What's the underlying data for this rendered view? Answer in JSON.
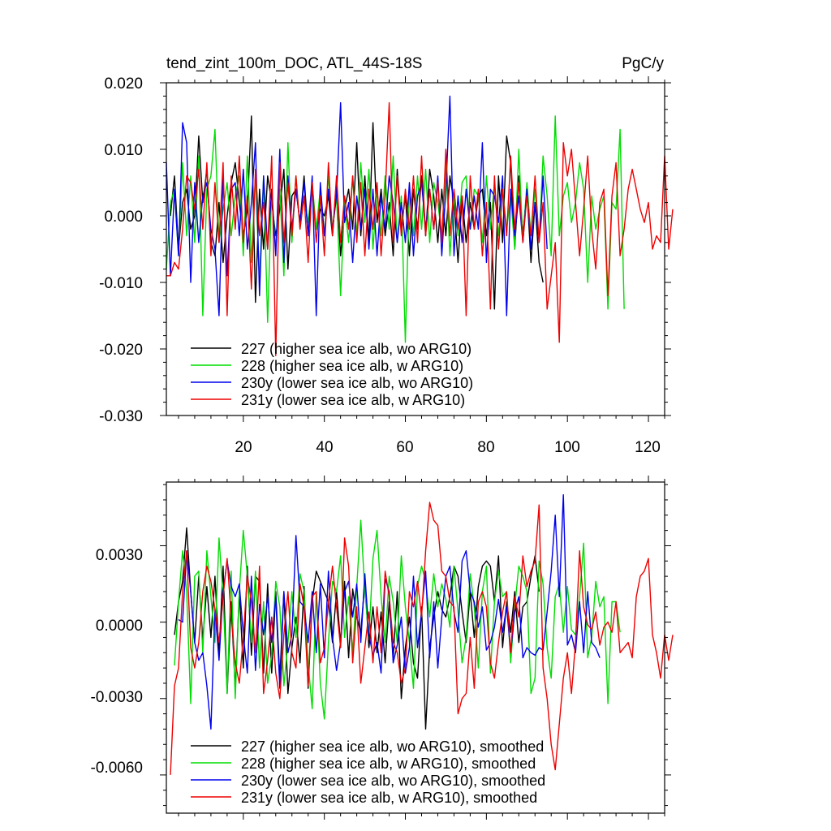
{
  "chart_data": [
    {
      "type": "line",
      "title": "tend_zint_100m_DOC, ATL_44S-18S",
      "units": "PgC/y",
      "ylim": [
        -0.03,
        0.02
      ],
      "xlim": [
        1,
        124
      ],
      "y_ticks": [
        "0.020",
        "0.010",
        "0.000",
        "-0.010",
        "-0.020",
        "-0.030"
      ],
      "x_ticks": [
        "20",
        "40",
        "60",
        "80",
        "100",
        "120"
      ],
      "legend_position": "bottom-left",
      "series": [
        {
          "name": "227 (higher sea ice alb, wo ARG10)",
          "color": "#000000",
          "start": 2,
          "values": [
            0.0,
            0.006,
            -0.005,
            0.002,
            0.004,
            -0.002,
            0.0,
            0.012,
            0.002,
            0.007,
            -0.004,
            -0.006,
            0.002,
            -0.007,
            0.0,
            0.005,
            0.008,
            0.002,
            -0.003,
            0.001,
            0.015,
            -0.013,
            0.004,
            -0.005,
            0.006,
            0.002,
            -0.003,
            0.001,
            0.007,
            -0.008,
            0.003,
            0.004,
            -0.001,
            0.006,
            -0.003,
            0.004,
            -0.002,
            0.001,
            0.0,
            0.003,
            -0.003,
            0.005,
            -0.006,
            0.001,
            0.004,
            -0.002,
            0.011,
            -0.003,
            0.006,
            -0.004,
            0.014,
            -0.001,
            0.004,
            -0.003,
            0.002,
            -0.006,
            0.007,
            -0.002,
            0.003,
            -0.006,
            0.004,
            -0.002,
            0.006,
            -0.003,
            0.007,
            0.003,
            -0.004,
            0.004,
            -0.003,
            0.006,
            0.002,
            -0.007,
            0.003,
            -0.004,
            0.002,
            -0.002,
            0.003,
            0.004,
            -0.003,
            0.002,
            -0.014,
            0.006,
            -0.004,
            0.012,
            0.008,
            -0.005,
            0.006,
            -0.003,
            0.004,
            -0.007,
            0.002,
            -0.007,
            -0.01
          ]
        },
        {
          "name": "228 (higher sea ice alb, w ARG10)",
          "color": "#00dd00",
          "start": 1,
          "values": [
            -0.008,
            0.002,
            0.004,
            -0.006,
            0.008,
            -0.003,
            0.006,
            -0.004,
            0.009,
            -0.015,
            0.004,
            0.006,
            0.013,
            -0.004,
            0.001,
            0.005,
            -0.003,
            0.003,
            0.006,
            -0.006,
            0.009,
            -0.007,
            0.006,
            -0.01,
            0.006,
            -0.016,
            0.004,
            -0.005,
            0.004,
            -0.009,
            0.011,
            -0.004,
            0.006,
            -0.002,
            0.003,
            -0.001,
            0.005,
            -0.002,
            0.004,
            -0.003,
            0.006,
            -0.002,
            0.003,
            -0.012,
            0.002,
            -0.004,
            0.006,
            -0.003,
            0.008,
            -0.001,
            0.007,
            -0.005,
            0.004,
            -0.003,
            0.006,
            -0.002,
            0.009,
            -0.004,
            0.003,
            -0.019,
            0.004,
            -0.003,
            0.006,
            -0.002,
            0.007,
            -0.004,
            0.005,
            0.002,
            -0.003,
            0.008,
            -0.006,
            0.003,
            -0.003,
            0.005,
            0.006,
            -0.002,
            0.004,
            0.003,
            -0.004,
            0.006,
            -0.002,
            0.005,
            -0.003,
            0.004,
            -0.002,
            0.003,
            -0.005,
            0.01,
            -0.004,
            0.005,
            -0.003,
            0.004,
            -0.004,
            0.009,
            0.003,
            -0.006,
            0.015,
            -0.003,
            0.003,
            0.005,
            -0.001,
            0.002,
            0.008,
            0.004,
            -0.01,
            0.003,
            -0.002,
            0.001,
            0.003,
            -0.014,
            0.002,
            0.001,
            0.013,
            -0.014
          ]
        },
        {
          "name": "230y (lower sea ice alb, wo ARG10)",
          "color": "#0000ee",
          "start": 1,
          "values": [
            0.008,
            -0.009,
            0.004,
            -0.006,
            0.014,
            0.011,
            -0.01,
            0.005,
            -0.004,
            0.003,
            0.005,
            -0.002,
            -0.005,
            -0.015,
            0.006,
            -0.009,
            0.004,
            0.005,
            -0.003,
            0.007,
            -0.005,
            0.002,
            0.011,
            -0.012,
            0.006,
            -0.005,
            0.004,
            -0.006,
            0.01,
            -0.007,
            0.006,
            -0.002,
            0.004,
            -0.001,
            0.005,
            -0.003,
            0.006,
            -0.015,
            0.005,
            -0.003,
            0.004,
            -0.002,
            0.003,
            0.017,
            -0.001,
            0.002,
            -0.007,
            0.003,
            -0.002,
            0.004,
            -0.005,
            0.004,
            -0.006,
            0.003,
            -0.002,
            0.006,
            0.002,
            -0.004,
            0.002,
            -0.004,
            0.005,
            -0.006,
            0.003,
            0.005,
            -0.002,
            0.004,
            -0.002,
            0.006,
            -0.006,
            0.004,
            0.018,
            -0.006,
            0.003,
            -0.004,
            0.004,
            -0.002,
            0.003,
            -0.002,
            0.011,
            -0.007,
            0.004,
            0.003,
            -0.001,
            0.006,
            -0.015,
            0.004,
            -0.003,
            0.003,
            -0.004,
            0.004,
            -0.005,
            0.002,
            -0.004,
            0.006,
            -0.005
          ]
        },
        {
          "name": "231y (lower sea ice alb, w ARG10)",
          "color": "#ee0000",
          "start": 1,
          "values": [
            -0.009,
            -0.009,
            -0.007,
            -0.008,
            -0.002,
            0.006,
            0.005,
            0.001,
            0.007,
            -0.002,
            0.008,
            -0.006,
            0.005,
            -0.004,
            0.008,
            -0.015,
            0.006,
            -0.002,
            0.009,
            -0.004,
            0.003,
            -0.011,
            0.007,
            -0.003,
            0.002,
            -0.005,
            0.009,
            -0.021,
            0.008,
            -0.004,
            0.005,
            -0.003,
            0.006,
            -0.002,
            0.003,
            -0.007,
            0.005,
            -0.004,
            0.003,
            -0.006,
            0.008,
            -0.003,
            0.006,
            -0.004,
            0.003,
            -0.002,
            0.006,
            -0.004,
            0.005,
            -0.006,
            0.004,
            -0.002,
            0.005,
            -0.006,
            0.003,
            0.017,
            -0.004,
            0.006,
            -0.003,
            0.004,
            -0.002,
            0.006,
            -0.004,
            0.009,
            -0.003,
            0.004,
            -0.002,
            0.005,
            -0.004,
            0.01,
            -0.003,
            0.004,
            -0.002,
            0.003,
            -0.015,
            0.006,
            -0.002,
            0.004,
            -0.006,
            0.002,
            -0.014,
            0.006,
            -0.005,
            0.004,
            -0.003,
            0.009,
            -0.002,
            0.005,
            -0.004,
            0.003,
            -0.003,
            0.006,
            -0.004,
            0.002,
            -0.014,
            -0.009,
            -0.004,
            -0.019,
            0.011,
            0.006,
            0.01,
            0.002,
            -0.006,
            0.001,
            0.009,
            -0.002,
            -0.008,
            0.002,
            0.004,
            -0.012,
            0.003,
            0.008,
            -0.006,
            -0.002,
            0.004,
            0.007,
            0.004,
            0.001,
            -0.001,
            0.002,
            -0.005,
            -0.003,
            -0.004,
            0.009,
            -0.005,
            0.001
          ]
        }
      ]
    },
    {
      "type": "line",
      "ylim": [
        -0.0075,
        0.0055
      ],
      "xlim": [
        1,
        124
      ],
      "y_ticks": [
        "0.0030",
        "0.0000",
        "-0.0030",
        "-0.0060"
      ],
      "legend_position": "bottom-left",
      "series": [
        {
          "name": "227 (higher sea ice alb, wo ARG10), smoothed",
          "color": "#000000",
          "start": 3,
          "values": [
            -0.0005,
            0.0008,
            0.0016,
            0.0037,
            0.0012,
            -0.0008,
            0.0018,
            -0.0007,
            0.0014,
            -0.0006,
            0.0018,
            -0.0013,
            0.0022,
            -0.0028,
            0.0008,
            -0.0027,
            0.0012,
            -0.0018,
            0.0022,
            -0.0013,
            0.0018,
            0.0016,
            -0.002,
            0.0015,
            -0.002,
            0.0012,
            -0.0022,
            0.0012,
            -0.0028,
            -0.001,
            0.0002,
            -0.0016,
            0.0014,
            -0.0026,
            0.0008,
            0.002,
            0.0016,
            0.0012,
            0.0008,
            -0.0008,
            0.0012,
            -0.0009,
            0.0016,
            -0.0014,
            0.0013,
            0.0002,
            -0.0004,
            0.0016,
            -0.001,
            0.0006,
            -0.0012,
            0.0004,
            -0.0016,
            0.0008,
            -0.0014,
            0.0012,
            -0.003,
            -0.001,
            0.0002,
            -0.0016,
            -0.0022,
            0.0006,
            -0.0042,
            -0.001,
            0.0002,
            0.0012,
            0.0005,
            0.0002,
            0.001,
            0.0022,
            0.0018,
            0.0004,
            -0.0008,
            0.0012,
            -0.0006,
            0.0014,
            0.0022,
            0.0024,
            0.0022,
            0.0008,
            0.0026,
            -0.001,
            0.0008,
            -0.0004,
            0.0012,
            -0.0008,
            0.0006,
            0.0008,
            0.0018,
            0.0026,
            0.0012
          ]
        },
        {
          "name": "228 (higher sea ice alb, w ARG10), smoothed",
          "color": "#00dd00",
          "start": 3,
          "values": [
            -0.0017,
            0.0008,
            0.0028,
            0.0012,
            -0.0032,
            0.0018,
            0.002,
            -0.0012,
            0.0028,
            0.001,
            -0.0008,
            0.0033,
            0.001,
            -0.0028,
            0.002,
            -0.003,
            0.0012,
            0.0036,
            0.0018,
            -0.0008,
            0.002,
            -0.0018,
            0.0008,
            -0.0024,
            -0.0013,
            0.0016,
            0.0006,
            -0.0025,
            -0.0008,
            0.0012,
            -0.0006,
            0.0019,
            0.0012,
            -0.0016,
            -0.0034,
            0.0012,
            -0.0024,
            -0.0038,
            -0.0008,
            0.0016,
            0.0012,
            0.0026,
            -0.0006,
            0.001,
            -0.0012,
            0.0014,
            0.004,
            0.0012,
            -0.0006,
            0.0025,
            0.0036,
            0.001,
            -0.0008,
            0.0018,
            0.0008,
            -0.0008,
            0.0026,
            0.0006,
            -0.0008,
            -0.0026,
            0.0014,
            0.0022,
            0.0016,
            0.0002,
            0.0019,
            0.0006,
            0.0015,
            0.0009,
            -0.0002,
            0.0022,
            0.0004,
            -0.0016,
            -0.0006,
            0.0019,
            0.0006,
            -0.0018,
            0.0012,
            0.0022,
            -0.002,
            0.0008,
            0.002,
            0.001,
            0.0012,
            -0.0016,
            0.0006,
            0.0022,
            0.0018,
            0.0012,
            -0.0028,
            -0.0022,
            0.0024,
            0.0015,
            -0.001,
            -0.0022,
            0.001,
            0.0015,
            -0.0004,
            0.0014,
            -0.0003,
            -0.0005,
            0.001,
            0.0031,
            -0.0014,
            -0.0006,
            0.0016,
            0.0006,
            0.001,
            -0.0032,
            0.0008,
            0.0008,
            -0.0004
          ]
        },
        {
          "name": "230y (lower sea ice alb, wo ARG10), smoothed",
          "color": "#0000ee",
          "start": 4,
          "values": [
            0.0001,
            0.0,
            0.0028,
            0.0012,
            -0.0008,
            -0.0015,
            -0.0012,
            -0.0025,
            -0.0042,
            0.0005,
            -0.0015,
            0.0012,
            0.0024,
            0.0014,
            0.001,
            0.0015,
            -0.0005,
            -0.002,
            0.0018,
            -0.0019,
            0.0007,
            -0.0005,
            0.001,
            -0.0008,
            0.001,
            -0.0026,
            0.0012,
            -0.0012,
            -0.0005,
            0.0034,
            0.0008,
            0.0006,
            -0.0008,
            0.0012,
            -0.0012,
            0.0015,
            -0.0014,
            0.002,
            -0.0006,
            -0.0019,
            -0.0008,
            0.0012,
            0.0016,
            0.0002,
            0.0015,
            -0.0008,
            0.0019,
            -0.0005,
            -0.0013,
            -0.0008,
            -0.002,
            0.0017,
            0.0012,
            -0.0016,
            -0.0009,
            0.0002,
            -0.002,
            -0.001,
            0.0018,
            -0.001,
            0.0004,
            0.002,
            -0.0014,
            0.0008,
            -0.0018,
            0.0002,
            0.0018,
            0.0022,
            0.0004,
            -0.0004,
            0.0024,
            0.0028,
            0.0012,
            0.0008,
            -0.0002,
            0.0006,
            -0.0011,
            -0.0008,
            -0.0002,
            0.0009,
            -0.0004,
            0.0006,
            -0.0012,
            0.0004,
            0.001,
            -0.0014,
            -0.001,
            -0.0012,
            -0.0013,
            -0.001,
            -0.0011,
            0.0004,
            0.002,
            0.0042,
            0.001,
            0.005,
            -0.0009,
            -0.0005,
            -0.0012,
            0.0008,
            -0.0012,
            0.0012,
            -0.0008,
            -0.001,
            -0.0014
          ]
        },
        {
          "name": "231y (lower sea ice alb, w ARG10), smoothed",
          "color": "#ee0000",
          "start": 2,
          "values": [
            -0.006,
            -0.0025,
            -0.0018,
            0.0012,
            0.0028,
            -0.001,
            -0.0018,
            -0.0008,
            0.0012,
            0.0022,
            0.0016,
            0.0005,
            -0.0008,
            0.001,
            0.0025,
            0.0002,
            -0.0016,
            -0.0024,
            -0.0006,
            0.0018,
            0.0008,
            -0.0012,
            0.0022,
            -0.0028,
            -0.0015,
            0.0002,
            -0.002,
            -0.003,
            -0.0005,
            0.0012,
            -0.0012,
            -0.0018,
            0.0015,
            0.0006,
            -0.0025,
            0.001,
            0.0012,
            -0.0016,
            -0.001,
            0.0008,
            0.0022,
            0.0006,
            -0.001,
            0.0033,
            0.0022,
            -0.0016,
            0.0006,
            -0.0024,
            -0.001,
            0.0004,
            -0.0016,
            0.0006,
            -0.0012,
            0.002,
            0.001,
            -0.0008,
            -0.0012,
            -0.0024,
            -0.0018,
            0.0012,
            0.0006,
            0.0016,
            0.0002,
            0.0028,
            0.0047,
            0.004,
            0.0038,
            0.002,
            0.0018,
            0.0008,
            0.0006,
            -0.0036,
            -0.003,
            -0.0028,
            -0.0006,
            -0.0026,
            0.0008,
            0.0012,
            0.0006,
            -0.0016,
            -0.0022,
            -0.0008,
            0.0004,
            0.0012,
            -0.0012,
            0.001,
            0.0002,
            0.0026,
            0.0014,
            0.002,
            0.0024,
            0.0046,
            -0.0018,
            -0.003,
            -0.0048,
            -0.0058,
            -0.004,
            -0.0022,
            -0.0012,
            -0.0028,
            -0.0008,
            0.0028,
            0.0006,
            -0.0001,
            -0.0003,
            0.0004,
            -0.0009,
            -0.0002,
            0.0,
            -0.0004,
            0.0008,
            -0.0012,
            -0.001,
            -0.0008,
            -0.0014,
            0.001,
            0.0018,
            0.002,
            0.0025,
            -0.0005,
            -0.0012,
            -0.0022,
            -0.0005,
            -0.0015,
            -0.0005
          ]
        }
      ]
    }
  ]
}
